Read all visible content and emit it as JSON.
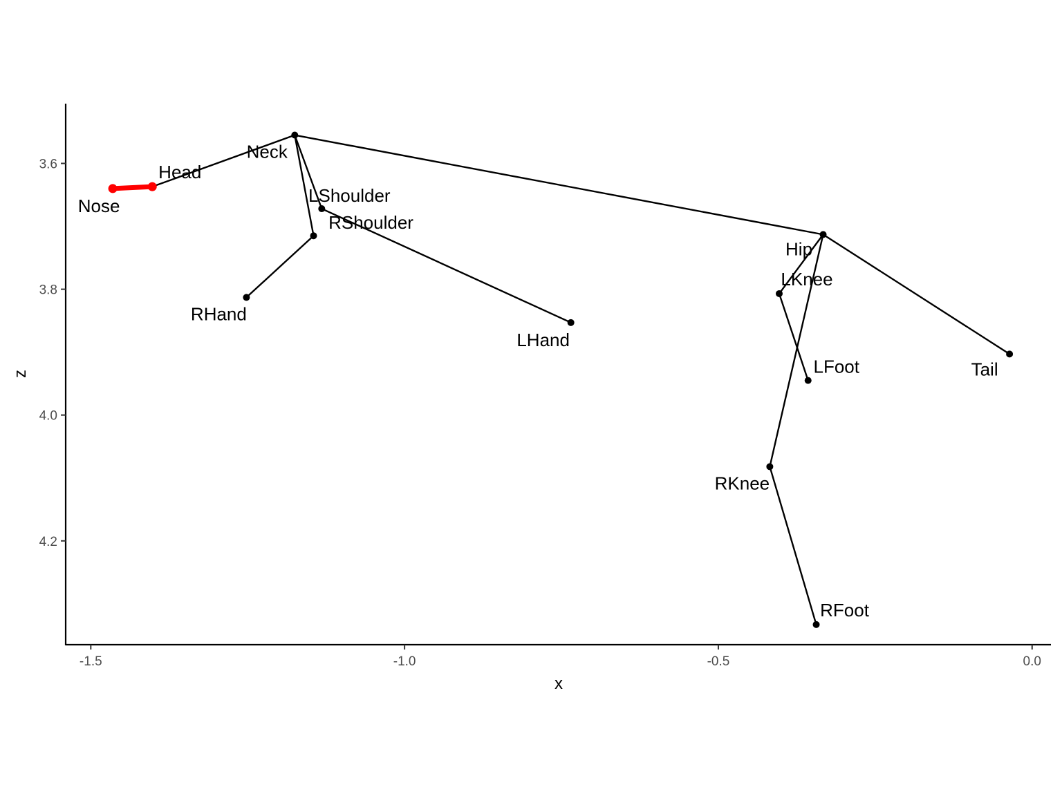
{
  "chart_data": {
    "type": "scatter",
    "title": "",
    "xlabel": "x",
    "ylabel": "z",
    "xlim": [
      -1.54,
      0.03
    ],
    "ylim": [
      3.505,
      4.365
    ],
    "y_reversed": true,
    "x_ticks": [
      -1.5,
      -1.0,
      -0.5,
      0.0
    ],
    "x_tick_labels": [
      "-1.5",
      "-1.0",
      "-0.5",
      "0.0"
    ],
    "y_ticks": [
      3.6,
      3.8,
      4.0,
      4.2
    ],
    "y_tick_labels": [
      "3.6",
      "3.8",
      "4.0",
      "4.2"
    ],
    "grid": false,
    "points": [
      {
        "name": "Nose",
        "x": -1.465,
        "z": 3.64
      },
      {
        "name": "Head",
        "x": -1.402,
        "z": 3.637
      },
      {
        "name": "Neck",
        "x": -1.175,
        "z": 3.555
      },
      {
        "name": "LShoulder",
        "x": -1.132,
        "z": 3.672
      },
      {
        "name": "RShoulder",
        "x": -1.145,
        "z": 3.715
      },
      {
        "name": "RHand",
        "x": -1.252,
        "z": 3.813
      },
      {
        "name": "LHand",
        "x": -0.735,
        "z": 3.853
      },
      {
        "name": "Hip",
        "x": -0.333,
        "z": 3.713
      },
      {
        "name": "LKnee",
        "x": -0.403,
        "z": 3.807
      },
      {
        "name": "LFoot",
        "x": -0.357,
        "z": 3.945
      },
      {
        "name": "Tail",
        "x": -0.036,
        "z": 3.903
      },
      {
        "name": "RKnee",
        "x": -0.418,
        "z": 4.082
      },
      {
        "name": "RFoot",
        "x": -0.344,
        "z": 4.333
      }
    ],
    "edges": [
      {
        "from": "Nose",
        "to": "Head",
        "color": "#ff0000"
      },
      {
        "from": "Head",
        "to": "Neck",
        "color": "#000000"
      },
      {
        "from": "Neck",
        "to": "LShoulder",
        "color": "#000000"
      },
      {
        "from": "Neck",
        "to": "RShoulder",
        "color": "#000000"
      },
      {
        "from": "LShoulder",
        "to": "LHand",
        "color": "#000000"
      },
      {
        "from": "RShoulder",
        "to": "RHand",
        "color": "#000000"
      },
      {
        "from": "Neck",
        "to": "Hip",
        "color": "#000000"
      },
      {
        "from": "Hip",
        "to": "LKnee",
        "color": "#000000"
      },
      {
        "from": "LKnee",
        "to": "LFoot",
        "color": "#000000"
      },
      {
        "from": "Hip",
        "to": "RKnee",
        "color": "#000000"
      },
      {
        "from": "RKnee",
        "to": "RFoot",
        "color": "#000000"
      },
      {
        "from": "Hip",
        "to": "Tail",
        "color": "#000000"
      }
    ],
    "highlight_color": "#ff0000",
    "default_color": "#000000"
  }
}
